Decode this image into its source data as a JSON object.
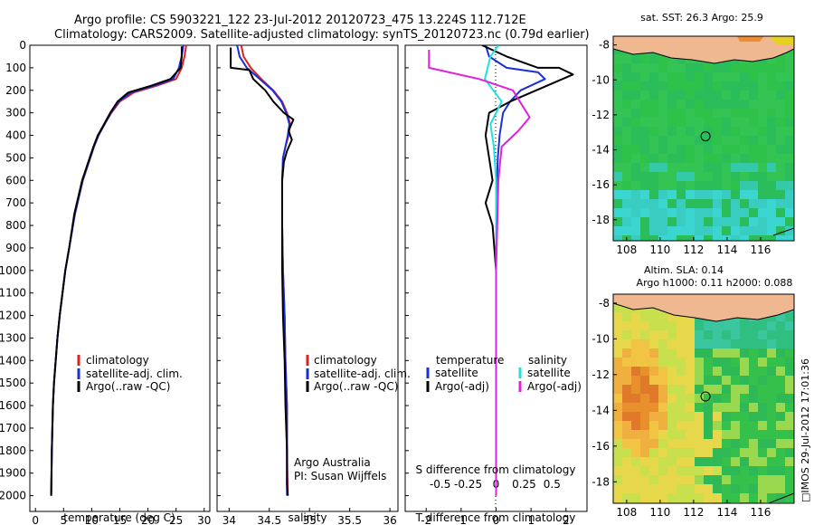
{
  "header": {
    "line1": "Argo profile: CS 5903221_122 23-Jul-2012 20120723_475 13.224S 112.712E",
    "line2": "Climatology: CARS2009. Satellite-adjusted climatology: synTS_20120723.nc (0.79d earlier)"
  },
  "footer": {
    "institution": "Argo Australia",
    "pi": "PI: Susan Wijffels",
    "stamp": "IMOS 29-Jul-2012 17:01:36"
  },
  "colors": {
    "climatology": "#dd2222",
    "satellite": "#1b2fd6",
    "argo": "#000000",
    "sal_satellite": "#22e0e0",
    "sal_argo": "#e020e0",
    "land": "#f0b890",
    "ocean_green": "#2fc24a"
  },
  "chart_data": [
    {
      "type": "line",
      "name": "temperature",
      "xlabel": "temperature (deg C)",
      "ylabel": "",
      "xlim": [
        -1,
        31
      ],
      "ylim": [
        2070,
        0
      ],
      "xticks": [
        0,
        5,
        10,
        15,
        20,
        25,
        30
      ],
      "yticks": [
        0,
        100,
        200,
        300,
        400,
        500,
        600,
        700,
        800,
        900,
        1000,
        1100,
        1200,
        1300,
        1400,
        1500,
        1600,
        1700,
        1800,
        1900,
        2000
      ],
      "legend": [
        "climatology",
        "satellite-adj. clim.",
        "Argo(..raw -QC)"
      ],
      "series": [
        {
          "name": "climatology",
          "x": [
            26.8,
            26.5,
            26.0,
            25.0,
            21.5,
            17.5,
            15.0,
            13.5,
            12.3,
            11.2,
            10.4,
            8.4,
            7.0,
            6.0,
            5.3,
            4.8,
            4.3,
            3.9,
            3.6,
            3.3,
            3.1,
            2.9,
            2.8
          ],
          "y": [
            0,
            50,
            100,
            150,
            180,
            210,
            250,
            300,
            350,
            400,
            450,
            600,
            750,
            900,
            1000,
            1100,
            1200,
            1300,
            1400,
            1500,
            1600,
            1800,
            2000
          ]
        },
        {
          "name": "satellite-adj. clim.",
          "x": [
            26.3,
            26.0,
            25.5,
            24.5,
            21.0,
            17.0,
            14.8,
            13.4,
            12.3,
            11.2,
            10.4,
            8.4,
            7.0,
            6.0,
            5.3,
            4.8,
            4.3,
            3.9,
            3.6,
            3.3,
            3.1,
            2.9,
            2.8
          ],
          "y": [
            0,
            50,
            100,
            150,
            180,
            210,
            250,
            300,
            350,
            400,
            450,
            600,
            750,
            900,
            1000,
            1100,
            1200,
            1300,
            1400,
            1500,
            1600,
            1800,
            2000
          ]
        },
        {
          "name": "Argo(..raw -QC)",
          "x": [
            26.0,
            26.0,
            25.8,
            24.0,
            20.5,
            16.5,
            14.6,
            13.3,
            12.2,
            11.1,
            10.3,
            8.3,
            6.9,
            6.0,
            5.3,
            4.8,
            4.3,
            3.9,
            3.6,
            3.3,
            3.1,
            2.9,
            2.8
          ],
          "y": [
            5,
            50,
            100,
            150,
            180,
            210,
            250,
            300,
            350,
            400,
            450,
            600,
            750,
            900,
            1000,
            1100,
            1200,
            1300,
            1400,
            1500,
            1600,
            1800,
            2000
          ]
        }
      ]
    },
    {
      "type": "line",
      "name": "salinity",
      "xlabel": "salinity",
      "xlim": [
        33.85,
        36.1
      ],
      "ylim": [
        2070,
        0
      ],
      "xticks": [
        34,
        34.5,
        35,
        35.5,
        36
      ],
      "legend": [
        "climatology",
        "satellite-adj. clim.",
        "Argo(..raw -QC)"
      ],
      "series": [
        {
          "name": "climatology",
          "x": [
            34.15,
            34.18,
            34.27,
            34.4,
            34.55,
            34.66,
            34.72,
            34.76,
            34.74,
            34.7,
            34.67,
            34.66,
            34.66,
            34.67,
            34.69,
            34.7,
            34.72,
            34.72,
            34.73
          ],
          "y": [
            0,
            50,
            100,
            150,
            200,
            250,
            300,
            350,
            400,
            450,
            500,
            600,
            800,
            1000,
            1200,
            1400,
            1600,
            1800,
            2000
          ]
        },
        {
          "name": "satellite-adj. clim.",
          "x": [
            34.1,
            34.13,
            34.22,
            34.38,
            34.54,
            34.65,
            34.71,
            34.75,
            34.73,
            34.7,
            34.67,
            34.66,
            34.66,
            34.67,
            34.69,
            34.7,
            34.72,
            34.72,
            34.72
          ],
          "y": [
            0,
            50,
            100,
            150,
            200,
            250,
            300,
            350,
            400,
            450,
            500,
            600,
            800,
            1000,
            1200,
            1400,
            1600,
            1800,
            2000
          ]
        },
        {
          "name": "Argo(..raw -QC)",
          "x": [
            34.02,
            34.02,
            34.25,
            34.3,
            34.45,
            34.55,
            34.68,
            34.8,
            34.74,
            34.78,
            34.72,
            34.68,
            34.66,
            34.66,
            34.66,
            34.67,
            34.69,
            34.7,
            34.72,
            34.72,
            34.73
          ],
          "y": [
            10,
            100,
            110,
            150,
            200,
            250,
            300,
            330,
            380,
            420,
            470,
            520,
            600,
            800,
            1000,
            1200,
            1400,
            1600,
            1800,
            1950,
            2000
          ]
        }
      ]
    },
    {
      "type": "line",
      "name": "difference",
      "xlabel": "T difference from climatology",
      "xlabel_top": "S difference from climatology",
      "xlim": [
        -2.6,
        2.6
      ],
      "ylim": [
        2070,
        0
      ],
      "xticks": [
        -2,
        -1,
        0,
        1,
        2
      ],
      "xticks_top": [
        -0.5,
        -0.25,
        0,
        0.25,
        0.5
      ],
      "legend_temperature": [
        "temperature",
        "satellite",
        "Argo(-adj)"
      ],
      "legend_salinity": [
        "salinity",
        "satellite",
        "Argo(-adj)"
      ],
      "series": [
        {
          "name": "T satellite",
          "x": [
            -0.3,
            -0.2,
            0.3,
            1.2,
            1.4,
            0.7,
            0.4,
            0.2,
            0.1,
            0.05,
            0.0,
            0.0,
            0.0,
            0.0
          ],
          "y": [
            0,
            50,
            100,
            120,
            150,
            200,
            250,
            300,
            400,
            500,
            700,
            1000,
            1500,
            2000
          ]
        },
        {
          "name": "T Argo(-adj)",
          "x": [
            -0.4,
            0.3,
            1.2,
            1.8,
            2.2,
            1.6,
            0.4,
            -0.2,
            -0.3,
            -0.2,
            -0.1,
            -0.3,
            -0.1,
            0.0,
            0.0,
            0.0,
            0.0
          ],
          "y": [
            0,
            50,
            100,
            100,
            130,
            170,
            250,
            300,
            400,
            500,
            600,
            700,
            800,
            1000,
            1200,
            1700,
            2000
          ]
        },
        {
          "name": "S satellite",
          "x": [
            0.02,
            -0.05,
            -0.1,
            0.05,
            -0.05,
            -0.02,
            0.0,
            0.0,
            0.0
          ],
          "y": [
            0,
            50,
            150,
            250,
            350,
            450,
            600,
            1000,
            2000
          ]
        },
        {
          "name": "S Argo(-adj)",
          "x": [
            -0.6,
            -0.6,
            -0.15,
            0.15,
            0.3,
            0.2,
            0.05,
            0.02,
            0.0,
            0.0
          ],
          "y": [
            20,
            100,
            150,
            200,
            320,
            380,
            450,
            600,
            1000,
            2000
          ]
        }
      ]
    },
    {
      "type": "heatmap",
      "name": "sst-map",
      "title": "sat. SST: 26.3 Argo: 25.9",
      "xticks": [
        108,
        110,
        112,
        114,
        116
      ],
      "yticks": [
        -8,
        -10,
        -12,
        -14,
        -16,
        -18
      ],
      "xlim": [
        107.2,
        118
      ],
      "ylim": [
        -19.2,
        -7.5
      ],
      "marker": {
        "lon": 112.712,
        "lat": -13.224
      }
    },
    {
      "type": "heatmap",
      "name": "sla-map",
      "title_line1": "Altim. SLA: 0.14",
      "title_line2": "Argo h1000: 0.11 h2000: 0.088",
      "xticks": [
        108,
        110,
        112,
        114,
        116
      ],
      "yticks": [
        -8,
        -10,
        -12,
        -14,
        -16,
        -18
      ],
      "xlim": [
        107.2,
        118
      ],
      "ylim": [
        -19.2,
        -7.5
      ],
      "marker": {
        "lon": 112.712,
        "lat": -13.224
      }
    }
  ]
}
